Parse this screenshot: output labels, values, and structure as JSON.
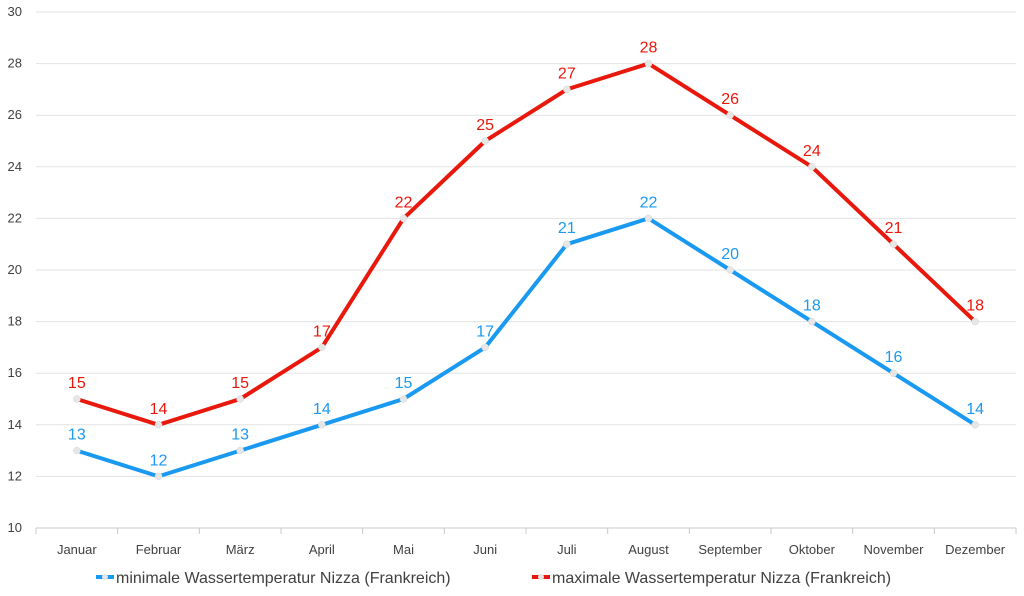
{
  "chart_data": {
    "type": "line",
    "categories": [
      "Januar",
      "Februar",
      "März",
      "April",
      "Mai",
      "Juni",
      "Juli",
      "August",
      "September",
      "Oktober",
      "November",
      "Dezember"
    ],
    "series": [
      {
        "name": "minimale Wassertemperatur Nizza (Frankreich)",
        "values": [
          13,
          12,
          13,
          14,
          15,
          17,
          21,
          22,
          20,
          18,
          16,
          14
        ],
        "color": "#1a99f0"
      },
      {
        "name": "maximale Wassertemperatur Nizza (Frankreich)",
        "values": [
          15,
          14,
          15,
          17,
          22,
          25,
          27,
          28,
          26,
          24,
          21,
          18
        ],
        "color": "#e8180c"
      }
    ],
    "ylim": [
      10,
      30
    ],
    "yticks": [
      10,
      12,
      14,
      16,
      18,
      20,
      22,
      24,
      26,
      28,
      30
    ],
    "grid": true,
    "legend_position": "bottom",
    "title": "",
    "xlabel": "",
    "ylabel": ""
  }
}
